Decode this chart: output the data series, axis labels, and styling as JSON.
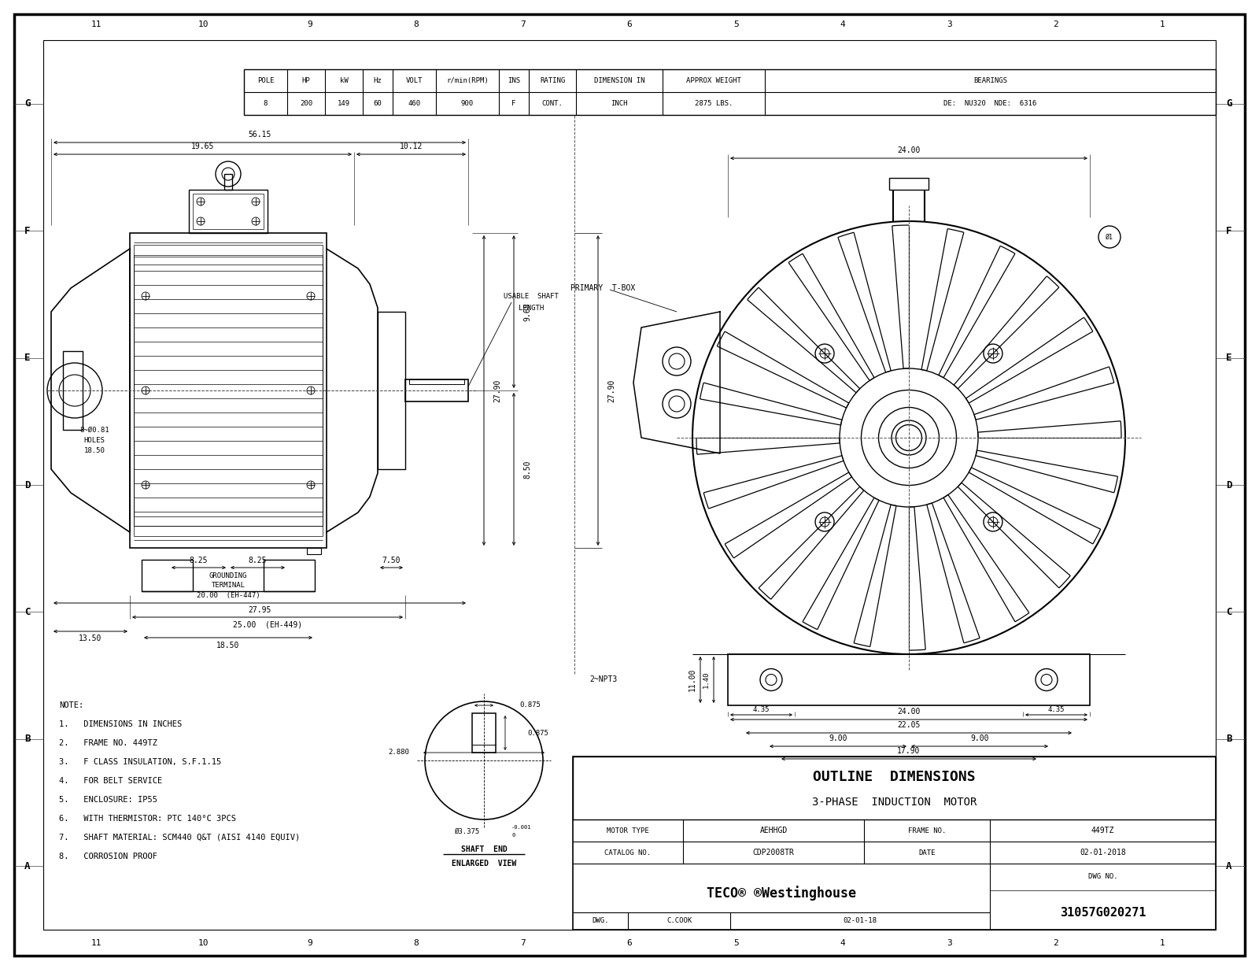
{
  "bg_color": "#ffffff",
  "line_color": "#000000",
  "font_family": "monospace",
  "table_header": [
    "POLE",
    "HP",
    "kW",
    "Hz",
    "VOLT",
    "r/min(RPM)",
    "INS",
    "RATING",
    "DIMENSION IN",
    "APPROX WEIGHT",
    "BEARINGS"
  ],
  "table_values": [
    "8",
    "200",
    "149",
    "60",
    "460",
    "900",
    "F",
    "CONT.",
    "INCH",
    "2875 LBS.",
    "DE:  NU320  NDE:  6316"
  ],
  "col_numbers": [
    "11",
    "10",
    "9",
    "8",
    "7",
    "6",
    "5",
    "4",
    "3",
    "2",
    "1"
  ],
  "row_letters_left": [
    "G",
    "F",
    "E",
    "D",
    "C",
    "B",
    "A"
  ],
  "row_letters_right": [
    "G",
    "F",
    "E",
    "D",
    "C",
    "B",
    "A"
  ],
  "notes": [
    "NOTE:",
    "1.   DIMENSIONS IN INCHES",
    "2.   FRAME NO. 449TZ",
    "3.   F CLASS INSULATION, S.F.1.15",
    "4.   FOR BELT SERVICE",
    "5.   ENCLOSURE: IP55",
    "6.   WITH THERMISTOR: PTC 140°C 3PCS",
    "7.   SHAFT MATERIAL: SCM440 Q&T (AISI 4140 EQUIV)",
    "8.   CORROSION PROOF"
  ],
  "title_block": {
    "outline": "OUTLINE  DIMENSIONS",
    "subtitle": "3-PHASE  INDUCTION  MOTOR",
    "motor_type_label": "MOTOR TYPE",
    "motor_type_val": "AEHHGD",
    "frame_label": "FRAME NO.",
    "frame_val": "449TZ",
    "catalog_label": "CATALOG NO.",
    "catalog_val": "CDP2008TR",
    "date_label": "DATE",
    "date_val": "02-01-2018",
    "dwg_label": "DWG NO.",
    "dwg_val": "31057G020271",
    "dwg": "DWG.",
    "by": "C.COOK",
    "date2": "02-01-18",
    "logo": "TECO® ®Westinghouse"
  }
}
